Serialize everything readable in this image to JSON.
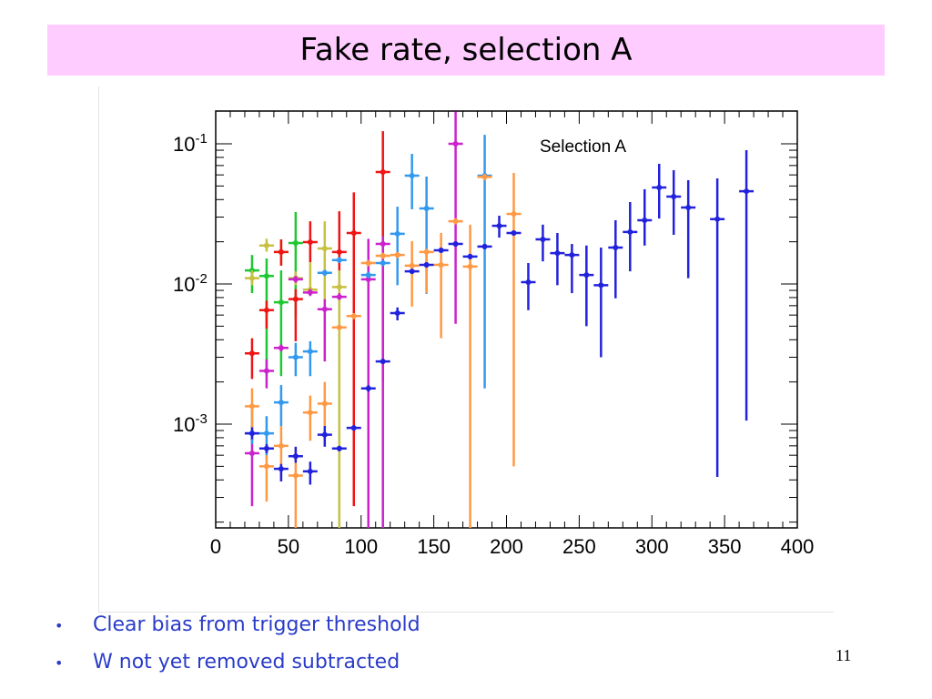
{
  "slide": {
    "title": "Fake rate, selection A",
    "bullets": [
      "Clear bias from trigger threshold",
      "W not yet removed subtracted"
    ],
    "bullet_symbol": "•",
    "page_number": "11",
    "title_bg": "#ffccff",
    "bullet_color": "#2a3cc8"
  },
  "chart_data": {
    "type": "scatter",
    "title": "",
    "annotation": "Selection A",
    "xlabel": "",
    "ylabel": "",
    "xlim": [
      0,
      400
    ],
    "ylim": [
      0.00018,
      0.17
    ],
    "yscale": "log",
    "xticks": [
      "0",
      "50",
      "100",
      "150",
      "200",
      "250",
      "300",
      "350",
      "400"
    ],
    "xtick_values": [
      0,
      50,
      100,
      150,
      200,
      250,
      300,
      350,
      400
    ],
    "yticks": [
      {
        "value": 0.1,
        "base": "10",
        "exp": "-1"
      },
      {
        "value": 0.01,
        "base": "10",
        "exp": "-2"
      },
      {
        "value": 0.001,
        "base": "10",
        "exp": "-3"
      }
    ],
    "xerr": 5,
    "point_format": [
      "x",
      "y",
      "y_low",
      "y_high"
    ],
    "series": [
      {
        "name": "green",
        "color": "#1ec832",
        "points": [
          [
            25,
            0.0125,
            0.0086,
            0.0161
          ],
          [
            35,
            0.0114,
            0.0022,
            0.0152
          ],
          [
            45,
            0.0074,
            0.0022,
            0.0125
          ],
          [
            55,
            0.0196,
            0.0058,
            0.0326
          ]
        ]
      },
      {
        "name": "olive",
        "color": "#c8c040",
        "points": [
          [
            25,
            0.011,
            0.0098,
            0.0125
          ],
          [
            35,
            0.0188,
            0.017,
            0.021
          ],
          [
            45,
            0.0169,
            0.0135,
            0.0208
          ],
          [
            55,
            0.011,
            0.0098,
            0.0123
          ],
          [
            65,
            0.0091,
            0.0085,
            0.0143
          ],
          [
            75,
            0.0179,
            0.0078,
            0.028
          ],
          [
            85,
            0.0095,
            0.00018,
            0.0125
          ]
        ]
      },
      {
        "name": "red",
        "color": "#f01414",
        "points": [
          [
            25,
            0.0032,
            0.0021,
            0.0041
          ],
          [
            35,
            0.0065,
            0.0048,
            0.0076
          ],
          [
            45,
            0.0169,
            0.0135,
            0.0208
          ],
          [
            55,
            0.0078,
            0.0039,
            0.0092
          ],
          [
            65,
            0.0199,
            0.0143,
            0.028
          ],
          [
            85,
            0.0169,
            0.0125,
            0.033
          ],
          [
            95,
            0.0231,
            0.00026,
            0.045
          ],
          [
            115,
            0.0629,
            0.002,
            0.123
          ]
        ]
      },
      {
        "name": "magenta",
        "color": "#cc22cc",
        "points": [
          [
            25,
            0.00062,
            0.00026,
            0.00097
          ],
          [
            35,
            0.0024,
            0.0018,
            0.0029
          ],
          [
            45,
            0.0035,
            0.0033,
            0.0037
          ],
          [
            55,
            0.0108,
            0.0102,
            0.0114
          ],
          [
            65,
            0.0087,
            0.0082,
            0.0092
          ],
          [
            75,
            0.0066,
            0.0028,
            0.0078
          ],
          [
            85,
            0.0081,
            0.0077,
            0.0086
          ],
          [
            105,
            0.0108,
            0.00018,
            0.021
          ],
          [
            115,
            0.0193,
            0.00018,
            0.022
          ],
          [
            165,
            0.1,
            0.0052,
            0.17
          ]
        ]
      },
      {
        "name": "light-blue",
        "color": "#3399ee",
        "points": [
          [
            25,
            0.00086,
            0.00072,
            0.00127
          ],
          [
            35,
            0.00086,
            0.00056,
            0.00114
          ],
          [
            45,
            0.00143,
            0.00097,
            0.0019
          ],
          [
            55,
            0.003,
            0.0022,
            0.0038
          ],
          [
            65,
            0.0033,
            0.0022,
            0.0039
          ],
          [
            75,
            0.012,
            0.0114,
            0.0126
          ],
          [
            85,
            0.0148,
            0.0141,
            0.0155
          ],
          [
            105,
            0.0116,
            0.011,
            0.0122
          ],
          [
            115,
            0.0141,
            0.0134,
            0.0148
          ],
          [
            125,
            0.0228,
            0.0098,
            0.0356
          ],
          [
            135,
            0.0593,
            0.0341,
            0.0848
          ],
          [
            145,
            0.0346,
            0.0085,
            0.0584
          ],
          [
            185,
            0.0593,
            0.0018,
            0.116
          ]
        ]
      },
      {
        "name": "orange",
        "color": "#ff9944",
        "points": [
          [
            25,
            0.00134,
            0.0009,
            0.0018
          ],
          [
            35,
            0.0005,
            0.00028,
            0.0006
          ],
          [
            45,
            0.0007,
            0.00042,
            0.00097
          ],
          [
            55,
            0.00043,
            0.00018,
            0.00068
          ],
          [
            65,
            0.00121,
            0.00076,
            0.0016
          ],
          [
            75,
            0.0014,
            0.00097,
            0.002
          ],
          [
            85,
            0.0049,
            0.0047,
            0.0051
          ],
          [
            95,
            0.0059,
            0.0056,
            0.0062
          ],
          [
            105,
            0.0141,
            0.0134,
            0.0148
          ],
          [
            115,
            0.0159,
            0.0151,
            0.0167
          ],
          [
            125,
            0.0161,
            0.0153,
            0.0169
          ],
          [
            135,
            0.0135,
            0.0069,
            0.0202
          ],
          [
            145,
            0.0169,
            0.0086,
            0.0178
          ],
          [
            155,
            0.0137,
            0.0041,
            0.0231
          ],
          [
            165,
            0.028,
            0.0266,
            0.0294
          ],
          [
            175,
            0.0133,
            0.00018,
            0.0265
          ],
          [
            185,
            0.058,
            0.055,
            0.061
          ],
          [
            205,
            0.0316,
            0.0005,
            0.062
          ]
        ]
      },
      {
        "name": "blue",
        "color": "#2222dd",
        "points": [
          [
            25,
            0.00086,
            0.00078,
            0.00095
          ],
          [
            35,
            0.00067,
            0.00062,
            0.00072
          ],
          [
            45,
            0.00048,
            0.00039,
            0.00052
          ],
          [
            55,
            0.00059,
            0.00053,
            0.00069
          ],
          [
            65,
            0.00046,
            0.00037,
            0.00054
          ],
          [
            75,
            0.00084,
            0.00069,
            0.00097
          ],
          [
            85,
            0.00067,
            0.00064,
            0.0007
          ],
          [
            95,
            0.00094,
            0.0009,
            0.00098
          ],
          [
            105,
            0.0018,
            0.0017,
            0.0019
          ],
          [
            115,
            0.0028,
            0.0027,
            0.0029
          ],
          [
            125,
            0.0062,
            0.0055,
            0.0068
          ],
          [
            135,
            0.0123,
            0.0118,
            0.0128
          ],
          [
            145,
            0.0137,
            0.0131,
            0.0143
          ],
          [
            155,
            0.0174,
            0.0167,
            0.0181
          ],
          [
            165,
            0.0193,
            0.0185,
            0.0201
          ],
          [
            175,
            0.0157,
            0.015,
            0.0164
          ],
          [
            185,
            0.0185,
            0.0177,
            0.0193
          ],
          [
            195,
            0.026,
            0.0214,
            0.0307
          ],
          [
            205,
            0.0231,
            0.0222,
            0.024
          ],
          [
            215,
            0.0103,
            0.0065,
            0.0141
          ],
          [
            225,
            0.0208,
            0.0145,
            0.0265
          ],
          [
            235,
            0.0166,
            0.0098,
            0.0231
          ],
          [
            245,
            0.0161,
            0.0086,
            0.0193
          ],
          [
            255,
            0.0116,
            0.005,
            0.0188
          ],
          [
            265,
            0.0098,
            0.003,
            0.0182
          ],
          [
            275,
            0.0182,
            0.0079,
            0.0285
          ],
          [
            285,
            0.0235,
            0.0123,
            0.0384
          ],
          [
            295,
            0.0285,
            0.0188,
            0.0474
          ],
          [
            305,
            0.0488,
            0.0293,
            0.072
          ],
          [
            315,
            0.042,
            0.0224,
            0.0648
          ],
          [
            325,
            0.0351,
            0.011,
            0.055
          ],
          [
            345,
            0.029,
            0.00042,
            0.0567
          ],
          [
            365,
            0.0459,
            0.00106,
            0.09
          ]
        ]
      }
    ]
  }
}
